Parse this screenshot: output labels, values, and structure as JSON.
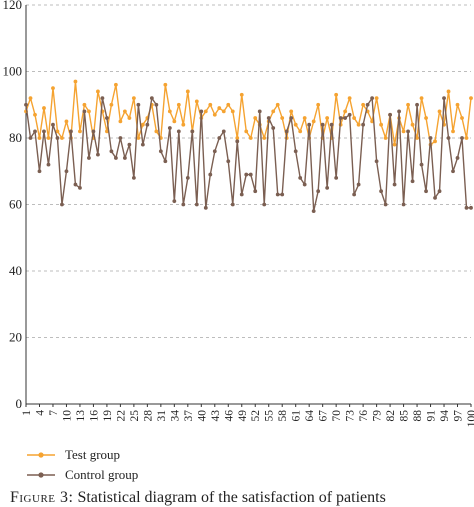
{
  "chart_data": {
    "type": "line",
    "xlabel": "",
    "ylabel": "",
    "ylim": [
      0,
      120
    ],
    "yticks": [
      0,
      20,
      40,
      60,
      80,
      100,
      120
    ],
    "xlim": [
      1,
      100
    ],
    "xticks": [
      1,
      4,
      7,
      10,
      13,
      16,
      19,
      22,
      25,
      28,
      31,
      34,
      37,
      40,
      43,
      46,
      49,
      52,
      55,
      58,
      61,
      64,
      67,
      70,
      73,
      76,
      79,
      82,
      85,
      88,
      91,
      94,
      97,
      100
    ],
    "grid": "horizontal dashed",
    "legend_position": "bottom-left",
    "x": [
      1,
      2,
      3,
      4,
      5,
      6,
      7,
      8,
      9,
      10,
      11,
      12,
      13,
      14,
      15,
      16,
      17,
      18,
      19,
      20,
      21,
      22,
      23,
      24,
      25,
      26,
      27,
      28,
      29,
      30,
      31,
      32,
      33,
      34,
      35,
      36,
      37,
      38,
      39,
      40,
      41,
      42,
      43,
      44,
      45,
      46,
      47,
      48,
      49,
      50,
      51,
      52,
      53,
      54,
      55,
      56,
      57,
      58,
      59,
      60,
      61,
      62,
      63,
      64,
      65,
      66,
      67,
      68,
      69,
      70,
      71,
      72,
      73,
      74,
      75,
      76,
      77,
      78,
      79,
      80,
      81,
      82,
      83,
      84,
      85,
      86,
      87,
      88,
      89,
      90,
      91,
      92,
      93,
      94,
      95,
      96,
      97,
      98,
      99,
      100
    ],
    "series": [
      {
        "name": "Test group",
        "color": "#f5a331",
        "values": [
          88,
          92,
          87,
          80,
          89,
          80,
          95,
          82,
          80,
          85,
          80,
          97,
          82,
          90,
          88,
          80,
          94,
          88,
          82,
          90,
          96,
          85,
          88,
          86,
          92,
          80,
          84,
          86,
          90,
          82,
          80,
          96,
          88,
          85,
          90,
          84,
          94,
          82,
          91,
          86,
          88,
          90,
          87,
          89,
          88,
          90,
          88,
          80,
          93,
          82,
          80,
          86,
          84,
          80,
          85,
          88,
          90,
          86,
          80,
          88,
          84,
          82,
          86,
          80,
          85,
          90,
          80,
          86,
          80,
          93,
          84,
          88,
          92,
          86,
          84,
          90,
          88,
          85,
          92,
          84,
          80,
          87,
          78,
          86,
          82,
          90,
          84,
          80,
          92,
          86,
          78,
          79,
          88,
          84,
          94,
          82,
          90,
          86,
          80,
          92
        ]
      },
      {
        "name": "Control group",
        "color": "#7b5f52",
        "values": [
          90,
          80,
          82,
          70,
          82,
          72,
          84,
          80,
          60,
          70,
          82,
          66,
          65,
          88,
          74,
          82,
          75,
          92,
          86,
          76,
          74,
          80,
          74,
          78,
          68,
          90,
          78,
          84,
          92,
          90,
          76,
          73,
          83,
          61,
          82,
          60,
          68,
          82,
          60,
          88,
          59,
          69,
          76,
          80,
          82,
          73,
          60,
          79,
          63,
          69,
          69,
          64,
          88,
          60,
          86,
          83,
          63,
          63,
          82,
          86,
          76,
          68,
          66,
          84,
          58,
          64,
          84,
          65,
          84,
          68,
          86,
          86,
          87,
          63,
          66,
          84,
          90,
          92,
          73,
          64,
          60,
          87,
          66,
          88,
          60,
          82,
          67,
          90,
          72,
          64,
          80,
          62,
          64,
          92,
          80,
          70,
          74,
          80,
          59,
          59
        ]
      }
    ]
  },
  "legend": {
    "items": [
      "Test group",
      "Control group"
    ]
  },
  "caption": {
    "figure_label": "Figure 3:",
    "text": "Statistical diagram of the satisfaction of patients"
  }
}
